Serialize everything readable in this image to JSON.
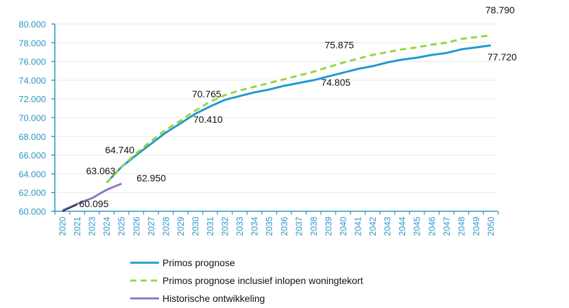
{
  "chart_data": {
    "type": "line",
    "title": "",
    "xlabel": "",
    "ylabel": "",
    "ylim": [
      60000,
      80000
    ],
    "yticks": [
      "60.000",
      "62.000",
      "64.000",
      "66.000",
      "68.000",
      "70.000",
      "72.000",
      "74.000",
      "76.000",
      "78.000",
      "80.000"
    ],
    "ytick_values": [
      60000,
      62000,
      64000,
      66000,
      68000,
      70000,
      72000,
      74000,
      76000,
      78000,
      80000
    ],
    "categories": [
      "2020",
      "2021",
      "2023",
      "2024",
      "2025",
      "2026",
      "2027",
      "2028",
      "2029",
      "2030",
      "2031",
      "2032",
      "2033",
      "2034",
      "2035",
      "2036",
      "2037",
      "2038",
      "2039",
      "2040",
      "2041",
      "2042",
      "2043",
      "2044",
      "2045",
      "2046",
      "2047",
      "2048",
      "2049",
      "2050"
    ],
    "grid": "horizontal",
    "legend_position": "bottom",
    "series": [
      {
        "name": "Primos prognose",
        "color": "#1f9bd0",
        "style": "solid",
        "values": [
          null,
          null,
          null,
          63063,
          64740,
          66000,
          67200,
          68400,
          69400,
          70410,
          71200,
          71900,
          72300,
          72700,
          73000,
          73400,
          73700,
          74000,
          74400,
          74805,
          75200,
          75500,
          75900,
          76200,
          76400,
          76700,
          76900,
          77300,
          77500,
          77720
        ]
      },
      {
        "name": "Primos prognose inclusief inlopen woningtekort",
        "color": "#9bd43a",
        "style": "dashed",
        "values": [
          null,
          null,
          null,
          63063,
          64740,
          66200,
          67500,
          68700,
          69700,
          70765,
          71700,
          72400,
          72900,
          73300,
          73700,
          74100,
          74500,
          74900,
          75400,
          75875,
          76300,
          76700,
          77000,
          77300,
          77500,
          77800,
          78000,
          78400,
          78600,
          78790
        ]
      },
      {
        "name": "Historische ontwikkeling",
        "color": "#8a78c4",
        "style": "solid",
        "values": [
          60095,
          60800,
          61400,
          62300,
          62950,
          null,
          null,
          null,
          null,
          null,
          null,
          null,
          null,
          null,
          null,
          null,
          null,
          null,
          null,
          null,
          null,
          null,
          null,
          null,
          null,
          null,
          null,
          null,
          null,
          null
        ]
      },
      {
        "color": "#111111",
        "style": "solid",
        "values": [
          60000,
          60700,
          null,
          null,
          null,
          null,
          null,
          null,
          null,
          null,
          null,
          null,
          null,
          null,
          null,
          null,
          null,
          null,
          null,
          null,
          null,
          null,
          null,
          null,
          null,
          null,
          null,
          null,
          null,
          null
        ]
      }
    ],
    "annotations": [
      {
        "text": "60.095",
        "category": "2021"
      },
      {
        "text": "62.950",
        "category": "2025"
      },
      {
        "text": "63.063",
        "category": "2024"
      },
      {
        "text": "64.740",
        "category": "2025"
      },
      {
        "text": "70.765",
        "category": "2030"
      },
      {
        "text": "70.410",
        "category": "2030"
      },
      {
        "text": "75.875",
        "category": "2040"
      },
      {
        "text": "74.805",
        "category": "2040"
      },
      {
        "text": "78.790",
        "category": "2050"
      },
      {
        "text": "77.720",
        "category": "2050"
      }
    ]
  }
}
